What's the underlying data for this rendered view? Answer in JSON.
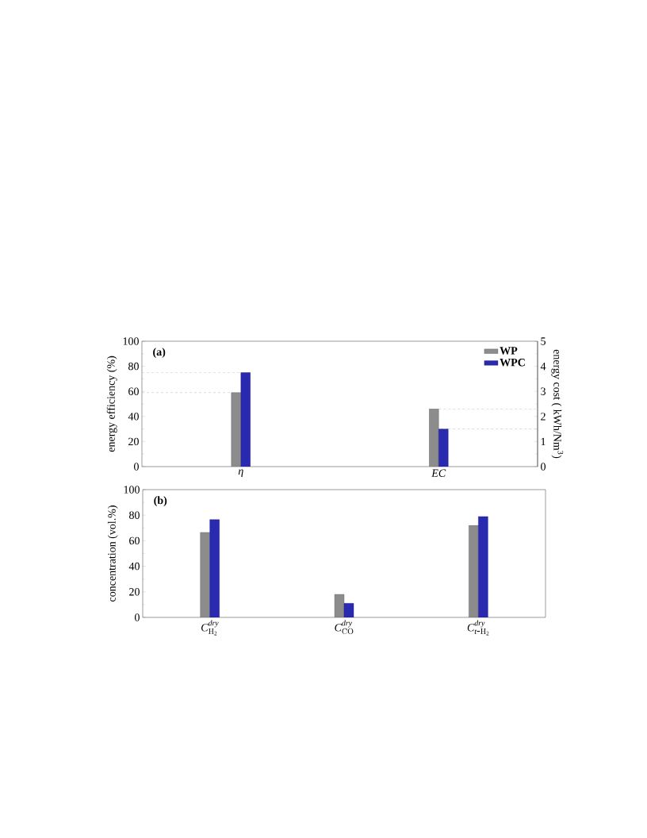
{
  "chart_data": [
    {
      "type": "bar",
      "categories": [
        "\\eta",
        "EC"
      ],
      "series": [
        {
          "name": "WP",
          "color": "#8c8c8c",
          "values": [
            59,
            null
          ]
        },
        {
          "name": "WPC",
          "color": "#2a2ab0",
          "values": [
            75,
            null
          ]
        },
        {
          "color": "#8c8c8c",
          "values": [
            null,
            2.3
          ],
          "axis": "y2"
        },
        {
          "color": "#2a2ab0",
          "values": [
            null,
            1.5
          ],
          "axis": "y2"
        }
      ],
      "ylabel": "energy efficiency (%)",
      "y2label": "energy cost ( kWh/Nm$^{3}$)",
      "ylim": [
        0,
        100
      ],
      "yticks": [
        0,
        20,
        40,
        60,
        80,
        100
      ],
      "y2lim": [
        0,
        5
      ],
      "y2ticks": [
        0,
        1,
        2,
        3,
        4,
        5
      ],
      "ref_lines": [
        {
          "axis": "y",
          "value": 75,
          "color": "#a0a0a0",
          "line_style": "dashed"
        },
        {
          "axis": "y",
          "value": 59,
          "color": "#a0a0a0",
          "line_style": "dashed"
        },
        {
          "axis": "y2",
          "value": 2.3,
          "color": "#a0a0a0",
          "line_style": "dashed"
        },
        {
          "axis": "y2",
          "value": 1.5,
          "color": "#a0a0a0",
          "line_style": "dashed"
        }
      ],
      "legend": "top right",
      "annotations": [
        "(a)"
      ]
    },
    {
      "type": "bar",
      "categories": [
        "C^{dry}_{\\mathrm{H}_2}",
        "C^{dry}_{\\mathrm{CO}}",
        "C^{dry}_{t\\mbox{-}\\mathrm{H}_2}"
      ],
      "series": [
        {
          "color": "#8c8c8c",
          "values": [
            66.5,
            18,
            72
          ]
        },
        {
          "color": "#2a2ab0",
          "values": [
            76.5,
            11,
            79
          ]
        }
      ],
      "ylabel": "concentration (vol.%)",
      "ylim": [
        0,
        100
      ],
      "yticks": [
        0,
        20,
        40,
        60,
        80,
        100
      ],
      "legend": false,
      "annotations": [
        "(b)"
      ]
    }
  ]
}
